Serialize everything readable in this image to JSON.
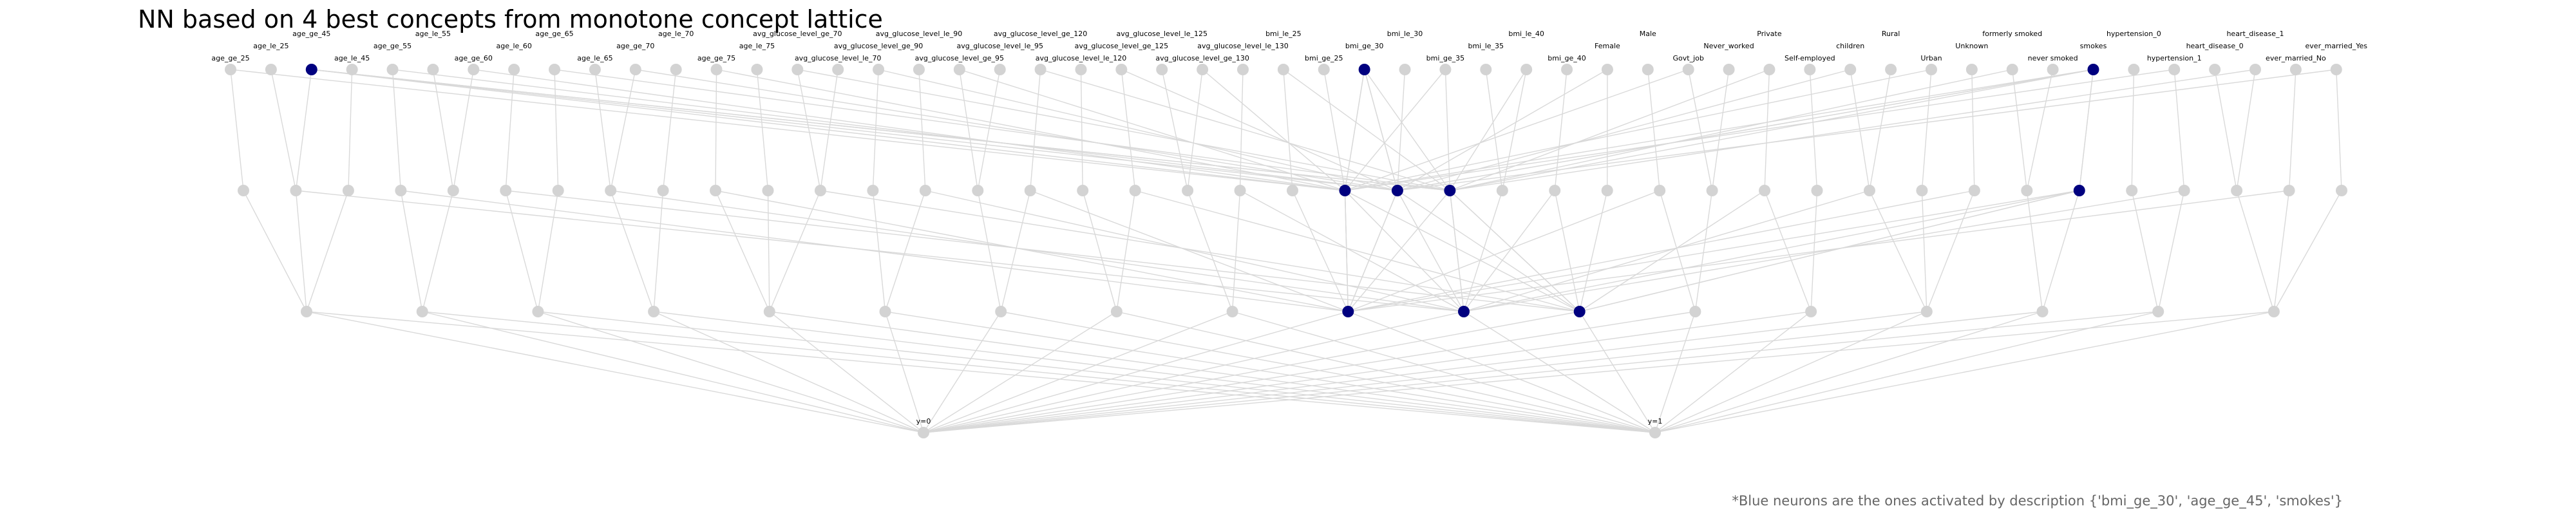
{
  "title": "NN based on 4 best concepts from monotone concept lattice",
  "footnote": "*Blue neurons are the ones activated by description {'bmi_ge_30', 'age_ge_45', 'smokes'}",
  "colors": {
    "active": "#00007f",
    "inactive": "#d3d3d3",
    "edge": "#d9d9d9"
  },
  "input_neurons": [
    "age_ge_25",
    "age_le_25",
    "age_ge_45",
    "age_le_45",
    "age_ge_55",
    "age_le_55",
    "age_ge_60",
    "age_le_60",
    "age_ge_65",
    "age_le_65",
    "age_ge_70",
    "age_le_70",
    "age_ge_75",
    "age_le_75",
    "avg_glucose_level_ge_70",
    "avg_glucose_level_le_70",
    "avg_glucose_level_ge_90",
    "avg_glucose_level_le_90",
    "avg_glucose_level_ge_95",
    "avg_glucose_level_le_95",
    "avg_glucose_level_ge_120",
    "avg_glucose_level_le_120",
    "avg_glucose_level_ge_125",
    "avg_glucose_level_le_125",
    "avg_glucose_level_ge_130",
    "avg_glucose_level_le_130",
    "bmi_le_25",
    "bmi_ge_25",
    "bmi_ge_30",
    "bmi_le_30",
    "bmi_ge_35",
    "bmi_le_35",
    "bmi_le_40",
    "bmi_ge_40",
    "Female",
    "Male",
    "Govt_job",
    "Never_worked",
    "Private",
    "Self-employed",
    "children",
    "Rural",
    "Urban",
    "Unknown",
    "formerly smoked",
    "never smoked",
    "smokes",
    "hypertension_0",
    "hypertension_1",
    "heart_disease_0",
    "heart_disease_1",
    "ever_married_No",
    "ever_married_Yes"
  ],
  "active_inputs": [
    "age_ge_45",
    "bmi_ge_30",
    "smokes"
  ],
  "hidden_layer_1_count": 41,
  "hidden_layer_1_active": [
    21,
    22,
    23,
    35
  ],
  "hidden_layer_2_count": 18,
  "hidden_layer_2_active": [
    9,
    10,
    11
  ],
  "output_neurons": [
    "y=0",
    "y=1"
  ]
}
